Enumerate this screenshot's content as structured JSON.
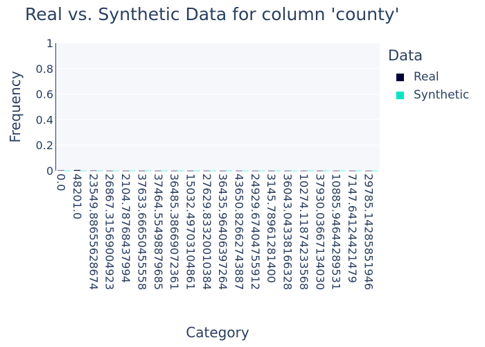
{
  "legend": {
    "title": "Data",
    "items": [
      {
        "label": "Real",
        "color": "#00003c"
      },
      {
        "label": "Synthetic",
        "color": "#00e5c8"
      }
    ]
  },
  "chart_data": {
    "type": "bar",
    "title": "Real vs. Synthetic Data for column 'county'",
    "xlabel": "Category",
    "ylabel": "Frequency",
    "ylim": [
      0,
      1
    ],
    "yticks": [
      0,
      0.2,
      0.4,
      0.6,
      0.8,
      1
    ],
    "ytick_labels": [
      "0",
      "0.2",
      "0.4",
      "0.6",
      "0.8",
      "1"
    ],
    "grid": true,
    "legend_position": "top-right",
    "categories": [
      "0.0",
      "48201.0",
      "23549.88655628674",
      "26867.31569004923",
      "2104.78768437994",
      "37633.66650455558",
      "37464.55498879685",
      "36485.38669072361",
      "15032.49703104861",
      "27629.83320010384",
      "36435.96406397264",
      "43650.82662743887",
      "24929.67404755912",
      "3145.78961281400",
      "36043.04338166328",
      "10274.11874233568",
      "37930.03667134030",
      "10885.94644289531",
      "7147.64124421479",
      "29785.14285851946"
    ],
    "series": [
      {
        "name": "Real",
        "color": "#00003c",
        "values": [
          0.003,
          0.006,
          0.002,
          0.001,
          0.001,
          0.001,
          0.001,
          0.001,
          0.001,
          0.001,
          0.001,
          0.001,
          0.001,
          0.001,
          0.001,
          0.001,
          0.001,
          0.001,
          0.001,
          0.001
        ]
      },
      {
        "name": "Synthetic",
        "color": "#00e5c8",
        "values": [
          0.001,
          0.001,
          0.001,
          0.001,
          0.001,
          0.001,
          0.001,
          0.001,
          0.001,
          0.001,
          0.001,
          0.001,
          0.001,
          0.001,
          0.001,
          0.001,
          0.001,
          0.001,
          0.001,
          0.001
        ]
      }
    ]
  }
}
